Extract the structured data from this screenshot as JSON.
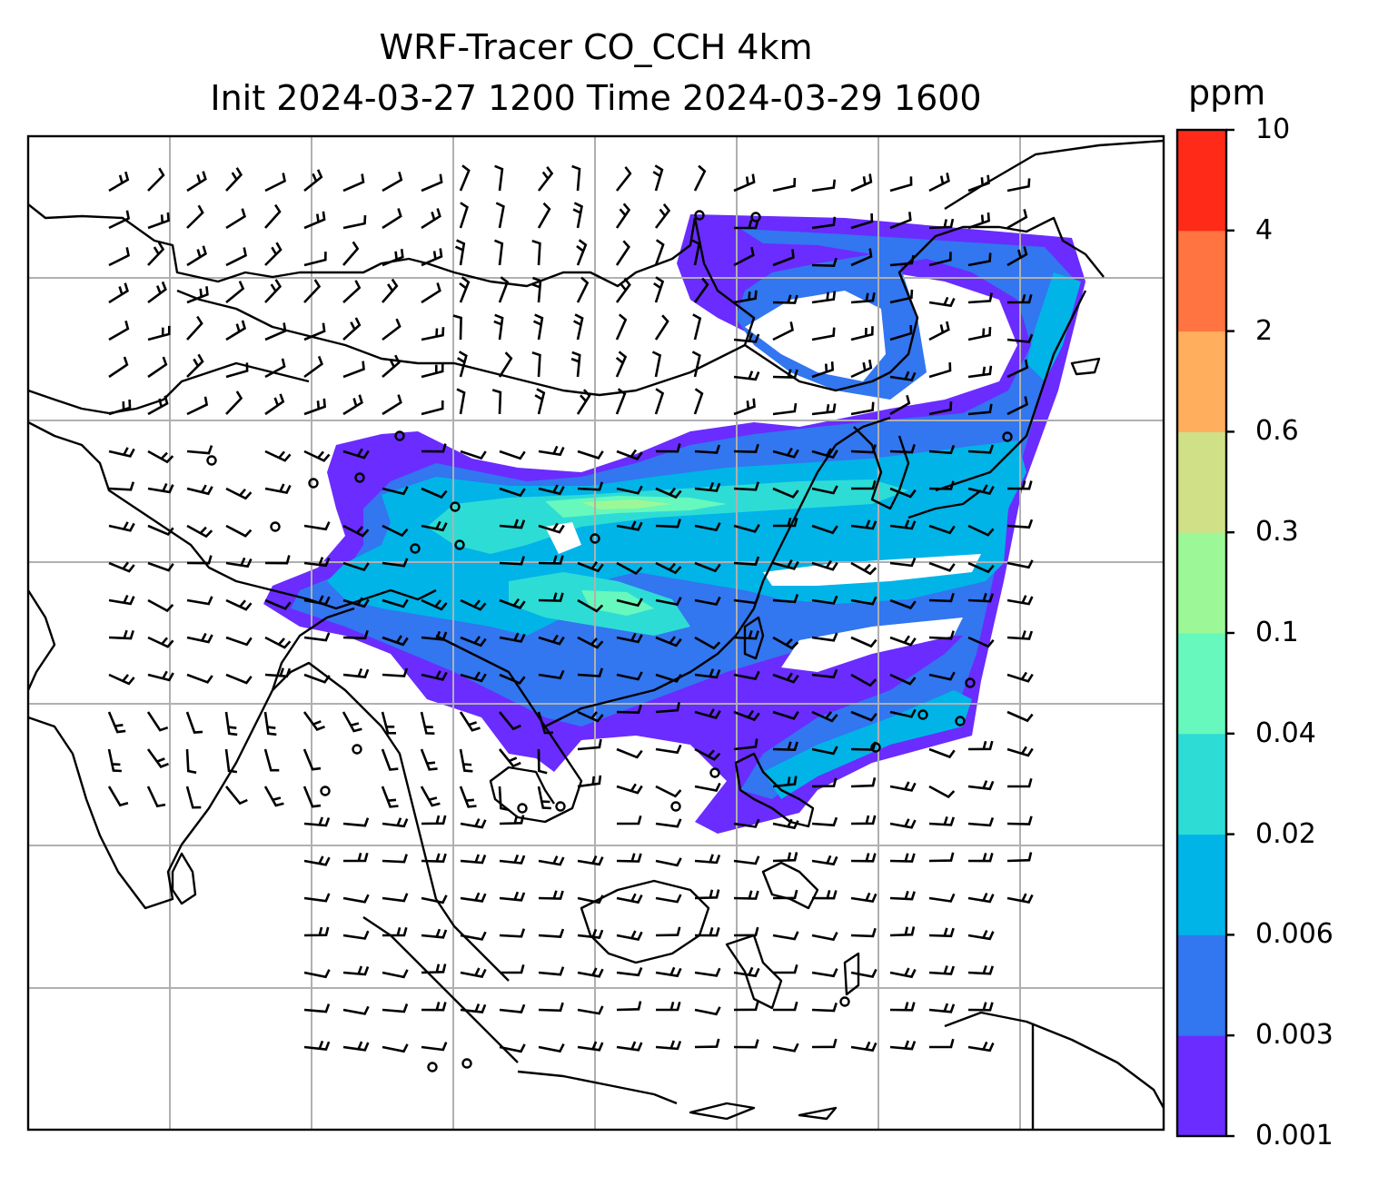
{
  "title": {
    "line1": "WRF-Tracer CO_CCH 4km",
    "line2": "Init 2024-03-27 1200 Time 2024-03-29 1600"
  },
  "colorbar": {
    "unit": "ppm",
    "ticks": [
      "0.001",
      "0.003",
      "0.006",
      "0.02",
      "0.04",
      "0.1",
      "0.3",
      "0.6",
      "2",
      "4",
      "10"
    ],
    "colors": [
      "#6a2cff",
      "#3276f0",
      "#00b4e8",
      "#2edcd6",
      "#66f8bc",
      "#9cf896",
      "#cfe087",
      "#ffae5e",
      "#ff7440",
      "#ff2a18"
    ]
  },
  "map": {
    "region": "South and East Asia",
    "gridlines": true
  }
}
